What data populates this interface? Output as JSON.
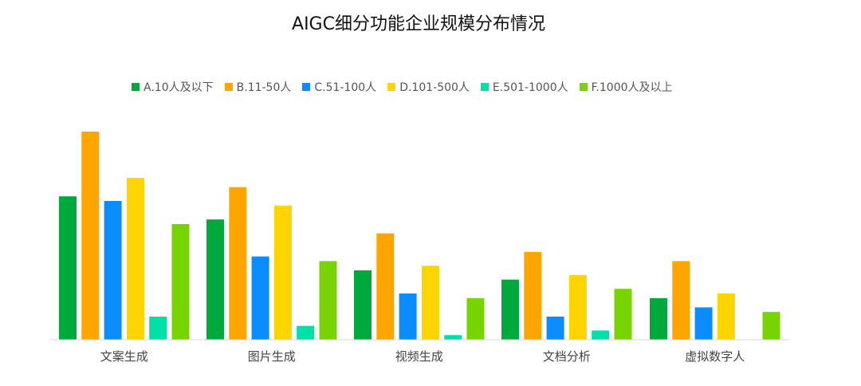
{
  "chart_data": {
    "type": "bar",
    "title": "AIGC细分功能企业规模分布情况",
    "categories": [
      "文案生成",
      "图片生成",
      "视频生成",
      "文档分析",
      "虚拟数字人"
    ],
    "series": [
      {
        "name": "A.10人及以下",
        "color": "#00a93b",
        "values": [
          31,
          26,
          15,
          13,
          9
        ]
      },
      {
        "name": "B.11-50人",
        "color": "#ffa500",
        "values": [
          45,
          33,
          23,
          19,
          17
        ]
      },
      {
        "name": "C.51-100人",
        "color": "#0a8cff",
        "values": [
          30,
          18,
          10,
          5,
          7
        ]
      },
      {
        "name": "D.101-500人",
        "color": "#ffd500",
        "values": [
          35,
          29,
          16,
          14,
          10
        ]
      },
      {
        "name": "E.501-1000人",
        "color": "#00e0a8",
        "values": [
          5,
          3,
          1,
          2,
          0
        ]
      },
      {
        "name": "F.1000人及以上",
        "color": "#77d400",
        "values": [
          25,
          17,
          9,
          11,
          6
        ]
      }
    ],
    "ylim": [
      0,
      45
    ],
    "grid": false,
    "legend_position": "top"
  }
}
